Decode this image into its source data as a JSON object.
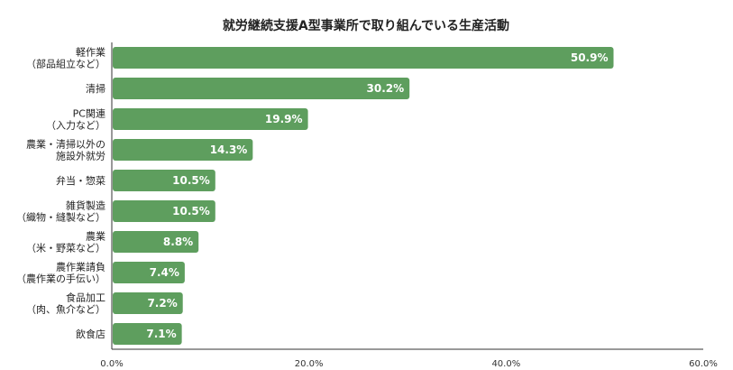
{
  "chart_data": {
    "type": "bar",
    "orientation": "horizontal",
    "title": "就労継続支援A型事業所で取り組んでいる生産活動",
    "categories": [
      [
        "軽作業",
        "（部品組立など）"
      ],
      [
        "清掃"
      ],
      [
        "PC関連",
        "（入力など）"
      ],
      [
        "農業・清掃以外の",
        "施設外就労"
      ],
      [
        "弁当・惣菜"
      ],
      [
        "雑貨製造",
        "（織物・縫製など）"
      ],
      [
        "農業",
        "（米・野菜など）"
      ],
      [
        "農作業請負",
        "（農作業の手伝い）"
      ],
      [
        "食品加工",
        "（肉、魚介など）"
      ],
      [
        "飲食店"
      ]
    ],
    "values": [
      50.9,
      30.2,
      19.9,
      14.3,
      10.5,
      10.5,
      8.8,
      7.4,
      7.2,
      7.1
    ],
    "value_labels": [
      "50.9%",
      "30.2%",
      "19.9%",
      "14.3%",
      "10.5%",
      "10.5%",
      "8.8%",
      "7.4%",
      "7.2%",
      "7.1%"
    ],
    "xlim": [
      0,
      60
    ],
    "xticks": [
      0,
      20,
      40,
      60
    ],
    "xtick_labels": [
      "0.0%",
      "20.0%",
      "40.0%",
      "60.0%"
    ],
    "xlabel": "",
    "ylabel": "",
    "grid": false,
    "legend": "none",
    "bar_color": "#5e9e5e"
  }
}
